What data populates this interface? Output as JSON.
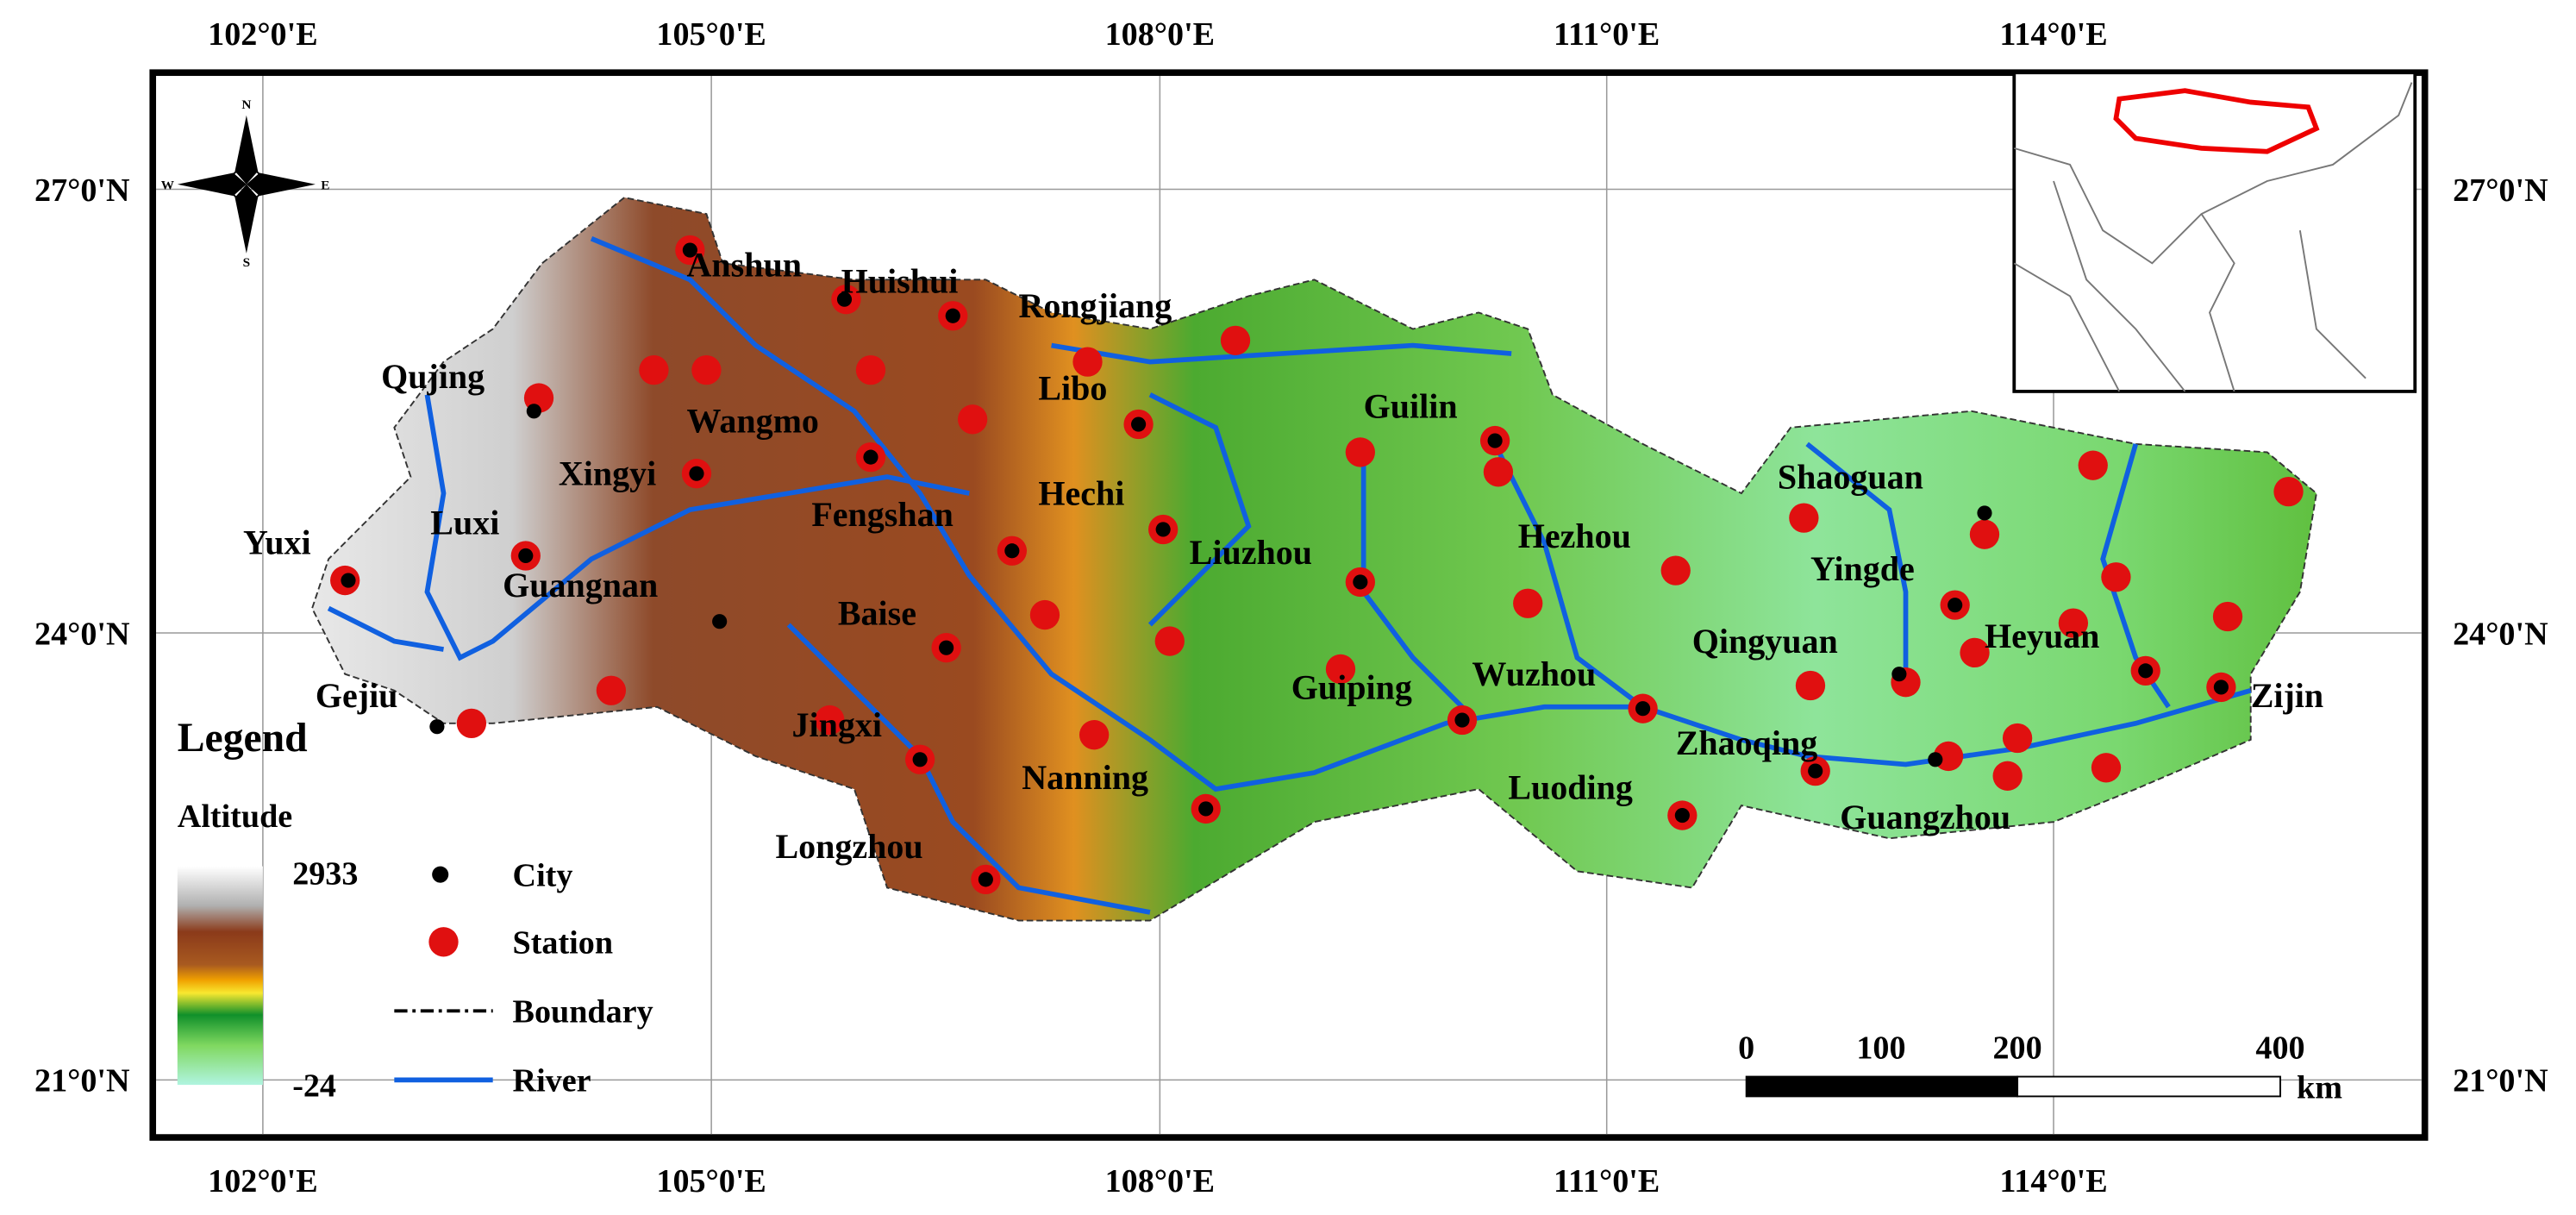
{
  "map": {
    "longitude_labels": [
      "102°0'E",
      "105°0'E",
      "108°0'E",
      "111°0'E",
      "114°0'E"
    ],
    "latitude_labels": [
      "27°0'N",
      "24°0'N",
      "21°0'N"
    ],
    "compass": [
      "N",
      "E",
      "S",
      "W"
    ],
    "cities": [
      "Anshun",
      "Huishui",
      "Rongjiang",
      "Qujing",
      "Libo",
      "Wangmo",
      "Guilin",
      "Xingyi",
      "Shaoguan",
      "Fengshan",
      "Hechi",
      "Yuxi",
      "Luxi",
      "Liuzhou",
      "Hezhou",
      "Yingde",
      "Guangnan",
      "Baise",
      "Qingyuan",
      "Heyuan",
      "Guiping",
      "Wuzhou",
      "Zijin",
      "Gejiu",
      "Jingxi",
      "Zhaoqing",
      "Nanning",
      "Luoding",
      "Guangzhou",
      "Longzhou"
    ],
    "legend": {
      "title": "Legend",
      "altitude_title": "Altitude",
      "altitude_max": 2933,
      "altitude_min": -24,
      "items": [
        "City",
        "Station",
        "Boundary",
        "River"
      ]
    },
    "scale_bar": {
      "ticks": [
        0,
        100,
        200,
        400
      ],
      "unit": "km"
    }
  }
}
